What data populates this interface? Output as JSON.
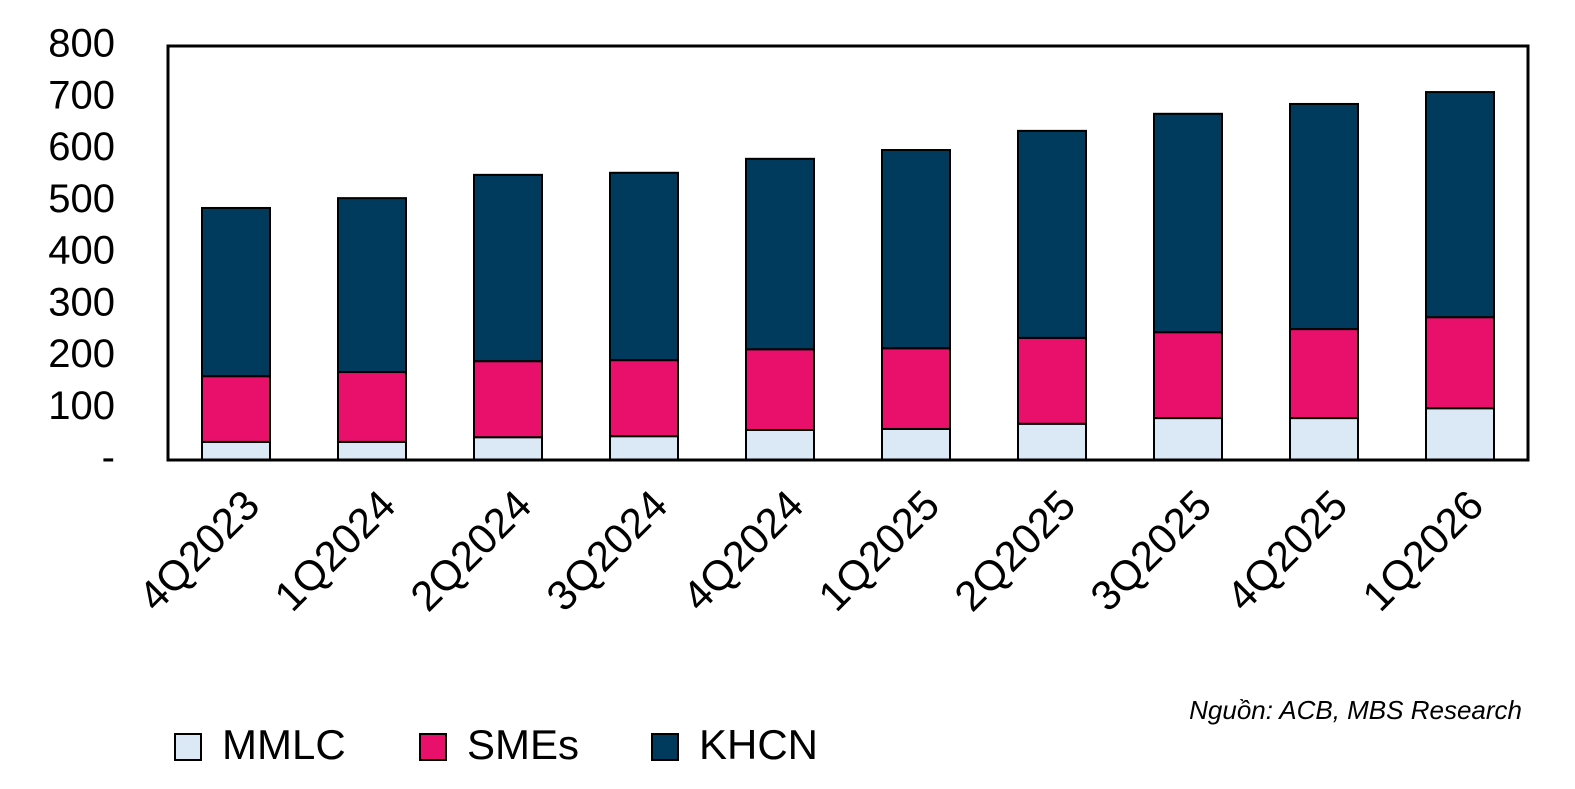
{
  "chart_data": {
    "type": "stacked_bar",
    "categories": [
      "4Q2023",
      "1Q2024",
      "2Q2024",
      "3Q2024",
      "4Q2024",
      "1Q2025",
      "2Q2025",
      "3Q2025",
      "4Q2025",
      "1Q2026"
    ],
    "series": [
      {
        "name": "MMLC",
        "color": "#dbe9f7",
        "values": [
          35,
          35,
          44,
          46,
          58,
          60,
          70,
          81,
          81,
          100
        ]
      },
      {
        "name": "SMEs",
        "color": "#e8106a",
        "values": [
          127,
          135,
          147,
          147,
          156,
          156,
          166,
          166,
          172,
          176
        ]
      },
      {
        "name": "KHCN",
        "color": "#003a5c",
        "values": [
          325,
          336,
          360,
          362,
          368,
          383,
          400,
          422,
          435,
          435
        ]
      }
    ],
    "ylim": [
      0,
      800
    ],
    "yticks": [
      {
        "value": 0,
        "label": "-"
      },
      100,
      200,
      300,
      400,
      500,
      600,
      700,
      800
    ],
    "source": "Nguồn: ACB, MBS Research"
  }
}
